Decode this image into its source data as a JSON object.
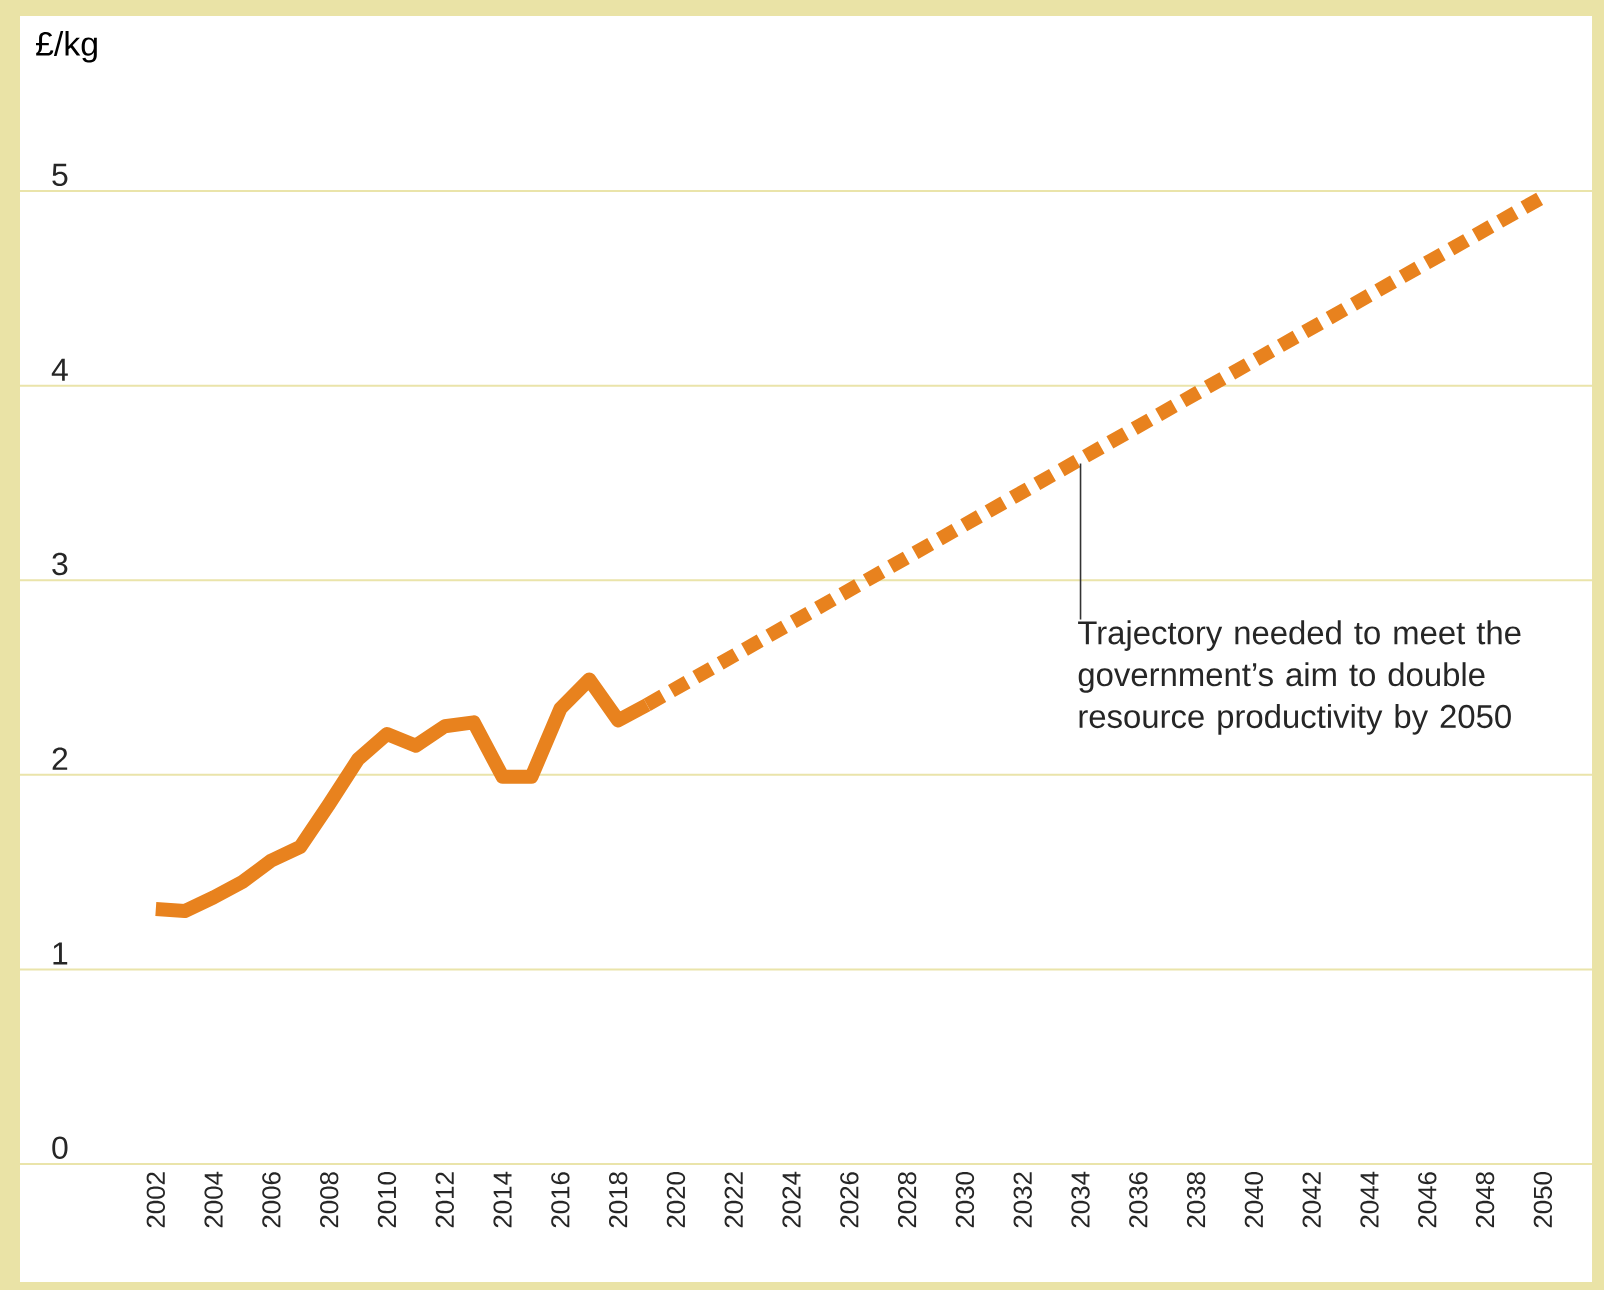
{
  "chart_data": {
    "type": "line",
    "ylabel": "£/kg",
    "xlim": [
      1997.3,
      2051.7
    ],
    "ylim": [
      0,
      5.9
    ],
    "xticks": [
      2002,
      2004,
      2006,
      2008,
      2010,
      2012,
      2014,
      2016,
      2018,
      2020,
      2022,
      2024,
      2026,
      2028,
      2030,
      2032,
      2034,
      2036,
      2038,
      2040,
      2042,
      2044,
      2046,
      2048,
      2050
    ],
    "yticks": [
      0,
      1,
      2,
      3,
      4,
      5
    ],
    "grid": "y",
    "marker": "none",
    "series": [
      {
        "color": "#e8821e",
        "line_style": "solid",
        "x": [
          2002,
          2003,
          2004,
          2005,
          2006,
          2007,
          2008,
          2009,
          2010,
          2011,
          2012,
          2013,
          2014,
          2015,
          2016,
          2017,
          2018,
          2019
        ],
        "values": [
          1.31,
          1.3,
          1.37,
          1.45,
          1.56,
          1.63,
          1.85,
          2.08,
          2.21,
          2.15,
          2.25,
          2.27,
          1.99,
          1.99,
          2.34,
          2.49,
          2.28,
          2.36
        ]
      },
      {
        "color": "#e8821e",
        "line_style": "dashed",
        "x": [
          2019,
          2050
        ],
        "values": [
          2.36,
          4.97
        ]
      }
    ],
    "annotations": [
      {
        "text": "Trajectory needed to meet the government’s aim to double resource productivity by 2050",
        "x": 2034,
        "y": 3.6
      }
    ]
  }
}
